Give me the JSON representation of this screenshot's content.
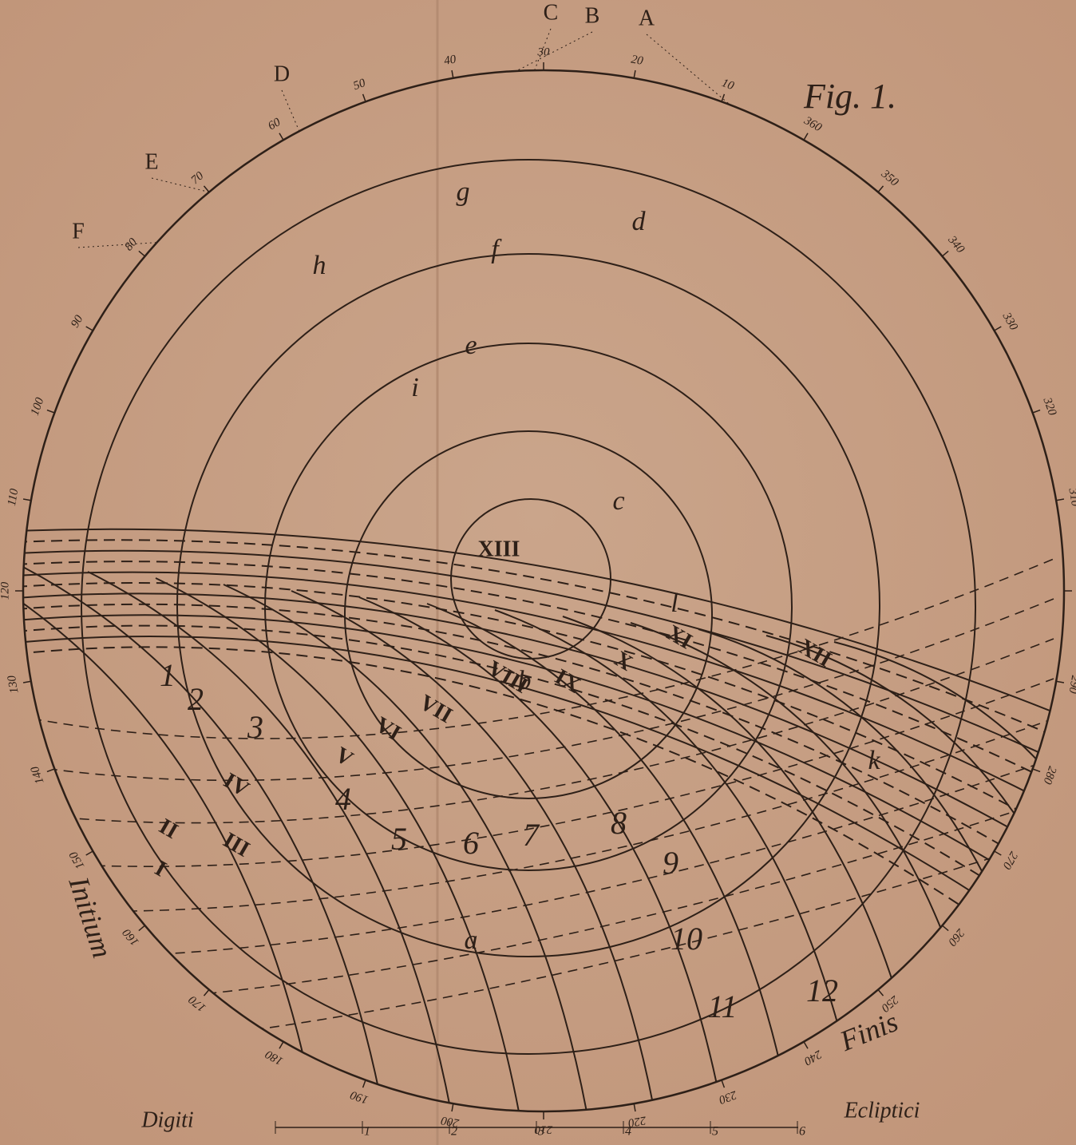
{
  "figure": "Fig. 1.",
  "markers": [
    "A",
    "B",
    "C",
    "D",
    "E",
    "F"
  ],
  "degrees": [
    10,
    20,
    30,
    40,
    50,
    60,
    70,
    80,
    90,
    100,
    110,
    120,
    130,
    140,
    150,
    160,
    170,
    180,
    190,
    200,
    210,
    220,
    230,
    240,
    250,
    260,
    270,
    280,
    290,
    300,
    310,
    320,
    330,
    340,
    350,
    360
  ],
  "features": [
    "a",
    "b",
    "c",
    "d",
    "e",
    "f",
    "g",
    "h",
    "i",
    "k",
    "l"
  ],
  "phases_roman": [
    "I",
    "II",
    "III",
    "IV",
    "V",
    "VI",
    "VII",
    "VIII",
    "IX",
    "X",
    "XI",
    "XII",
    "XIII"
  ],
  "phases_arabic": [
    1,
    2,
    3,
    4,
    5,
    6,
    7,
    8,
    9,
    10,
    11,
    12
  ],
  "start": "Initium",
  "end": "Finis",
  "scale": {
    "left": "Digiti",
    "right": "Ecliptici",
    "ticks": [
      1,
      2,
      3,
      4,
      5,
      6
    ]
  }
}
